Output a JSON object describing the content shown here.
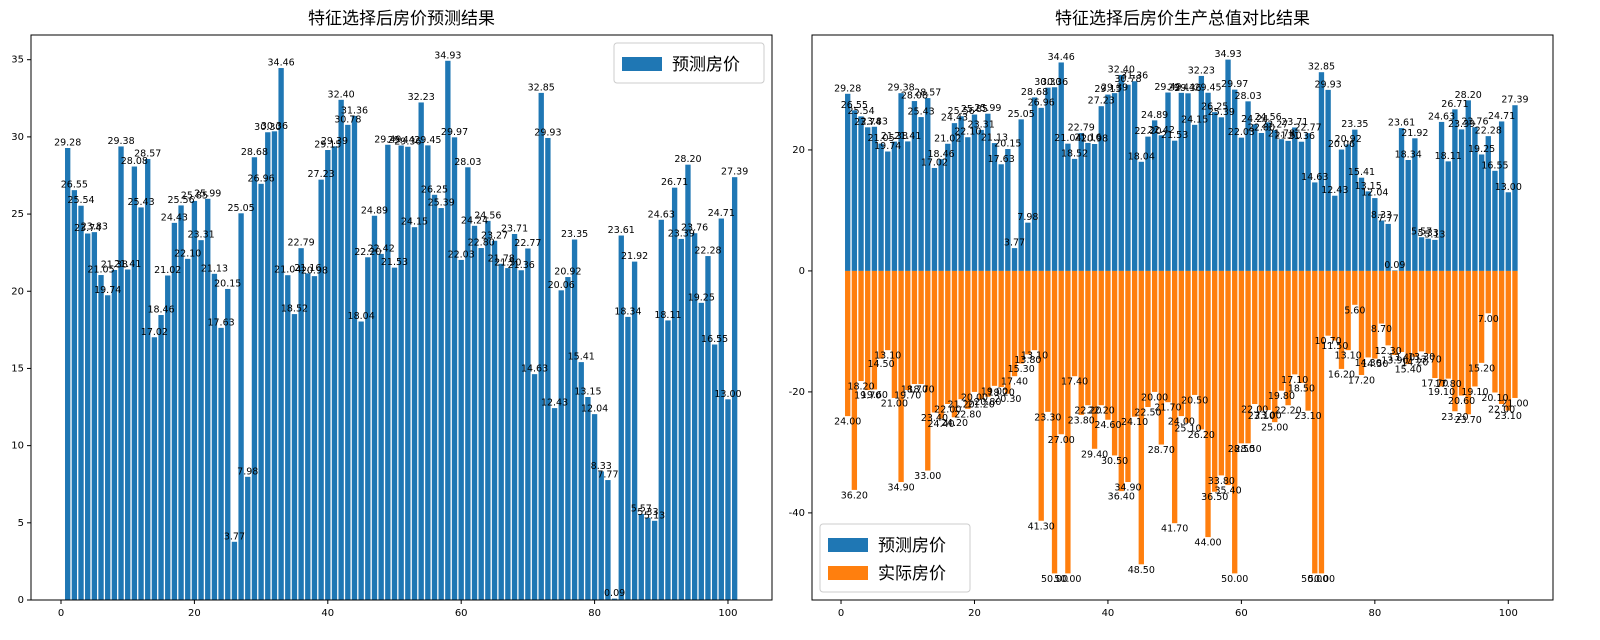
{
  "chart_data": [
    {
      "type": "bar",
      "title": "特征选择后房价预测结果",
      "x": [
        1,
        2,
        3,
        4,
        5,
        6,
        7,
        8,
        9,
        10,
        11,
        12,
        13,
        14,
        15,
        16,
        17,
        18,
        19,
        20,
        21,
        22,
        23,
        24,
        25,
        26,
        27,
        28,
        29,
        30,
        31,
        32,
        33,
        34,
        35,
        36,
        37,
        38,
        39,
        40,
        41,
        42,
        43,
        44,
        45,
        46,
        47,
        48,
        49,
        50,
        51,
        52,
        53,
        54,
        55,
        56,
        57,
        58,
        59,
        60,
        61,
        62,
        63,
        64,
        65,
        66,
        67,
        68,
        69,
        70,
        71,
        72,
        73,
        74,
        75,
        76,
        77,
        78,
        79,
        80,
        81,
        82,
        83,
        84,
        85,
        86,
        87,
        88,
        89,
        90,
        91,
        92,
        93,
        94,
        95,
        96,
        97,
        98,
        99,
        100,
        101
      ],
      "series": [
        {
          "name": "预测房价",
          "color": "#1f77b4",
          "values": [
            29.28,
            26.55,
            25.54,
            23.74,
            23.83,
            21.05,
            19.74,
            21.38,
            29.38,
            21.41,
            28.08,
            25.43,
            28.57,
            17.02,
            18.46,
            21.02,
            24.43,
            25.56,
            22.1,
            25.85,
            23.31,
            25.99,
            21.13,
            17.63,
            20.15,
            3.77,
            25.05,
            7.98,
            28.68,
            26.96,
            30.3,
            30.36,
            34.46,
            21.04,
            18.52,
            22.79,
            21.16,
            20.98,
            27.23,
            29.15,
            29.39,
            32.4,
            30.78,
            31.36,
            18.04,
            22.2,
            24.89,
            22.42,
            29.49,
            21.53,
            29.44,
            29.36,
            24.15,
            32.23,
            29.45,
            26.25,
            25.39,
            34.93,
            29.97,
            22.03,
            28.03,
            24.24,
            22.8,
            24.56,
            23.27,
            21.78,
            21.5,
            23.71,
            21.36,
            22.77,
            14.63,
            32.85,
            29.93,
            12.43,
            20.06,
            20.92,
            23.35,
            15.41,
            13.15,
            12.04,
            8.33,
            7.77,
            0.09,
            23.61,
            18.34,
            21.92,
            5.57,
            5.33,
            5.13,
            24.63,
            18.11,
            26.71,
            23.39,
            28.2,
            23.76,
            19.25,
            22.28,
            16.55,
            24.71,
            13.0,
            27.39
          ],
          "value_labels": [
            "29.28",
            "26.55",
            "25.54",
            "23.74",
            "23.83",
            "21.05",
            "19.74",
            "21.38",
            "29.38",
            "21.41",
            "28.08",
            "25.43",
            "28.57",
            "17.02",
            "18.46",
            "21.02",
            "24.43",
            "25.56",
            "22.10",
            "25.85",
            "23.31",
            "25.99",
            "21.13",
            "17.63",
            "20.15",
            "3.77",
            "25.05",
            "7.98",
            "28.68",
            "26.96",
            "30.30",
            "30.36",
            "34.46",
            "21.04",
            "18.52",
            "22.79",
            "21.16",
            "20.98",
            "27.23",
            "29.15",
            "29.39",
            "32.40",
            "30.78",
            "31.36",
            "18.04",
            "22.20",
            "24.89",
            "22.42",
            "29.49",
            "21.53",
            "29.44",
            "29.36",
            "24.15",
            "32.23",
            "29.45",
            "26.25",
            "25.39",
            "34.93",
            "29.97",
            "22.03",
            "28.03",
            "24.24",
            "22.80",
            "24.56",
            "23.27",
            "21.78",
            "21.50",
            "23.71",
            "21.36",
            "22.77",
            "14.63",
            "32.85",
            "29.93",
            "12.43",
            "20.06",
            "20.92",
            "23.35",
            "15.41",
            "13.15",
            "12.04",
            "8.33",
            "7.77",
            "0.09",
            "23.61",
            "18.34",
            "21.92",
            "5.57",
            "5.33",
            "5.13",
            "24.63",
            "18.11",
            "26.71",
            "23.39",
            "28.20",
            "23.76",
            "19.25",
            "22.28",
            "16.55",
            "24.71",
            "13.00",
            "27.39"
          ]
        }
      ],
      "xlim": [
        -4.5,
        106.6
      ],
      "ylim": [
        0,
        36.6
      ],
      "xticks": [
        0,
        20,
        40,
        60,
        80,
        100
      ],
      "yticks": [
        0,
        5,
        10,
        15,
        20,
        25,
        30,
        35
      ],
      "legend": "upper right"
    },
    {
      "type": "bar",
      "title": "特征选择后房价生产总值对比结果",
      "x": [
        1,
        2,
        3,
        4,
        5,
        6,
        7,
        8,
        9,
        10,
        11,
        12,
        13,
        14,
        15,
        16,
        17,
        18,
        19,
        20,
        21,
        22,
        23,
        24,
        25,
        26,
        27,
        28,
        29,
        30,
        31,
        32,
        33,
        34,
        35,
        36,
        37,
        38,
        39,
        40,
        41,
        42,
        43,
        44,
        45,
        46,
        47,
        48,
        49,
        50,
        51,
        52,
        53,
        54,
        55,
        56,
        57,
        58,
        59,
        60,
        61,
        62,
        63,
        64,
        65,
        66,
        67,
        68,
        69,
        70,
        71,
        72,
        73,
        74,
        75,
        76,
        77,
        78,
        79,
        80,
        81,
        82,
        83,
        84,
        85,
        86,
        87,
        88,
        89,
        90,
        91,
        92,
        93,
        94,
        95,
        96,
        97,
        98,
        99,
        100,
        101
      ],
      "series": [
        {
          "name": "预测房价",
          "color": "#1f77b4",
          "values": [
            29.28,
            26.55,
            25.54,
            23.74,
            23.83,
            21.05,
            19.74,
            21.38,
            29.38,
            21.41,
            28.08,
            25.43,
            28.57,
            17.02,
            18.46,
            21.02,
            24.43,
            25.56,
            22.1,
            25.85,
            23.31,
            25.99,
            21.13,
            17.63,
            20.15,
            3.77,
            25.05,
            7.98,
            28.68,
            26.96,
            30.3,
            30.36,
            34.46,
            21.04,
            18.52,
            22.79,
            21.16,
            20.98,
            27.23,
            29.15,
            29.39,
            32.4,
            30.78,
            31.36,
            18.04,
            22.2,
            24.89,
            22.42,
            29.49,
            21.53,
            29.44,
            29.36,
            24.15,
            32.23,
            29.45,
            26.25,
            25.39,
            34.93,
            29.97,
            22.03,
            28.03,
            24.24,
            22.8,
            24.56,
            23.27,
            21.78,
            21.5,
            23.71,
            21.36,
            22.77,
            14.63,
            32.85,
            29.93,
            12.43,
            20.06,
            20.92,
            23.35,
            15.41,
            13.15,
            12.04,
            8.33,
            7.77,
            0.09,
            23.61,
            18.34,
            21.92,
            5.57,
            5.33,
            5.13,
            24.63,
            18.11,
            26.71,
            23.39,
            28.2,
            23.76,
            19.25,
            22.28,
            16.55,
            24.71,
            13.0,
            27.39
          ],
          "value_labels": [
            "29.28",
            "26.55",
            "25.54",
            "23.74",
            "23.83",
            "21.05",
            "19.74",
            "21.38",
            "29.38",
            "21.41",
            "28.08",
            "25.43",
            "28.57",
            "17.02",
            "18.46",
            "21.02",
            "24.43",
            "25.56",
            "22.10",
            "25.85",
            "23.31",
            "25.99",
            "21.13",
            "17.63",
            "20.15",
            "3.77",
            "25.05",
            "7.98",
            "28.68",
            "26.96",
            "30.30",
            "30.36",
            "34.46",
            "21.04",
            "18.52",
            "22.79",
            "21.16",
            "20.98",
            "27.23",
            "29.15",
            "29.39",
            "32.40",
            "30.78",
            "31.36",
            "18.04",
            "22.20",
            "24.89",
            "22.42",
            "29.49",
            "21.53",
            "29.44",
            "29.36",
            "24.15",
            "32.23",
            "29.45",
            "26.25",
            "25.39",
            "34.93",
            "29.97",
            "22.03",
            "28.03",
            "24.24",
            "22.80",
            "24.56",
            "23.27",
            "21.78",
            "21.50",
            "23.71",
            "21.36",
            "22.77",
            "14.63",
            "32.85",
            "29.93",
            "12.43",
            "20.06",
            "20.92",
            "23.35",
            "15.41",
            "13.15",
            "12.04",
            "8.33",
            "7.77",
            "0.09",
            "23.61",
            "18.34",
            "21.92",
            "5.57",
            "5.33",
            "5.13",
            "24.63",
            "18.11",
            "26.71",
            "23.39",
            "28.20",
            "23.76",
            "19.25",
            "22.28",
            "16.55",
            "24.71",
            "13.00",
            "27.39"
          ]
        },
        {
          "name": "实际房价",
          "color": "#ff7f0e",
          "values": [
            -24,
            -36.2,
            -18.2,
            -19.7,
            -19.6,
            -14.5,
            -13.1,
            -21,
            -34.9,
            -19.7,
            -18.7,
            -18.7,
            -33,
            -23.4,
            -24.4,
            -22,
            -24.2,
            -21.2,
            -22.8,
            -20,
            -21.2,
            -20.8,
            -19,
            -19.2,
            -20.3,
            -17.4,
            -15.3,
            -13.8,
            -13.1,
            -41.3,
            -23.3,
            -50,
            -27,
            -50,
            -17.4,
            -23.8,
            -22.2,
            -29.4,
            -22.2,
            -24.6,
            -30.5,
            -36.4,
            -34.9,
            -24.1,
            -48.5,
            -22.5,
            -20,
            -28.7,
            -21.7,
            -41.7,
            -24,
            -25.1,
            -20.5,
            -26.2,
            -44,
            -36.5,
            -33.8,
            -35.4,
            -50,
            -28.5,
            -28.5,
            -22,
            -23.1,
            -23,
            -25,
            -19.8,
            -22.2,
            -17.1,
            -18.5,
            -23.1,
            -50,
            -50,
            -10.7,
            -11.5,
            -16.2,
            -13.1,
            -5.6,
            -17.2,
            -14.3,
            -14.5,
            -8.7,
            -12.3,
            -13.9,
            -13.4,
            -15.4,
            -14.2,
            -13.3,
            -13.7,
            -17.7,
            -19.1,
            -17.8,
            -23.2,
            -20.6,
            -23.7,
            -19.1,
            -15.2,
            -7,
            -20.1,
            -22,
            -23.1,
            -21
          ],
          "value_labels": [
            "24.00",
            "36.20",
            "18.20",
            "19.70",
            "19.60",
            "14.50",
            "13.10",
            "21.00",
            "34.90",
            "19.70",
            "18.70",
            "18.70",
            "33.00",
            "23.40",
            "24.40",
            "22.00",
            "24.20",
            "21.20",
            "22.80",
            "20.00",
            "21.20",
            "20.80",
            "19.00",
            "19.20",
            "20.30",
            "17.40",
            "15.30",
            "13.80",
            "13.10",
            "41.30",
            "23.30",
            "50.00",
            "27.00",
            "50.00",
            "17.40",
            "23.80",
            "22.20",
            "29.40",
            "22.20",
            "24.60",
            "30.50",
            "36.40",
            "34.90",
            "24.10",
            "48.50",
            "22.50",
            "20.00",
            "28.70",
            "21.70",
            "41.70",
            "24.00",
            "25.10",
            "20.50",
            "26.20",
            "44.00",
            "36.50",
            "33.80",
            "35.40",
            "50.00",
            "28.50",
            "28.50",
            "22.00",
            "23.10",
            "23.00",
            "25.00",
            "19.80",
            "22.20",
            "17.10",
            "18.50",
            "23.10",
            "50.00",
            "50.00",
            "10.70",
            "11.50",
            "16.20",
            "13.10",
            "5.60",
            "17.20",
            "14.30",
            "14.50",
            "8.70",
            "12.30",
            "13.90",
            "13.40",
            "15.40",
            "14.20",
            "13.30",
            "13.70",
            "17.70",
            "19.10",
            "17.80",
            "23.20",
            "20.60",
            "23.70",
            "19.10",
            "15.20",
            "7.00",
            "20.10",
            "22.00",
            "23.10",
            "21.00"
          ]
        }
      ],
      "xlim": [
        -4.35,
        106.7
      ],
      "ylim": [
        -54.4,
        39.0
      ],
      "xticks": [
        0,
        20,
        40,
        60,
        80,
        100
      ],
      "yticks": [
        -40,
        -20,
        0,
        20
      ],
      "legend": "lower left"
    }
  ]
}
